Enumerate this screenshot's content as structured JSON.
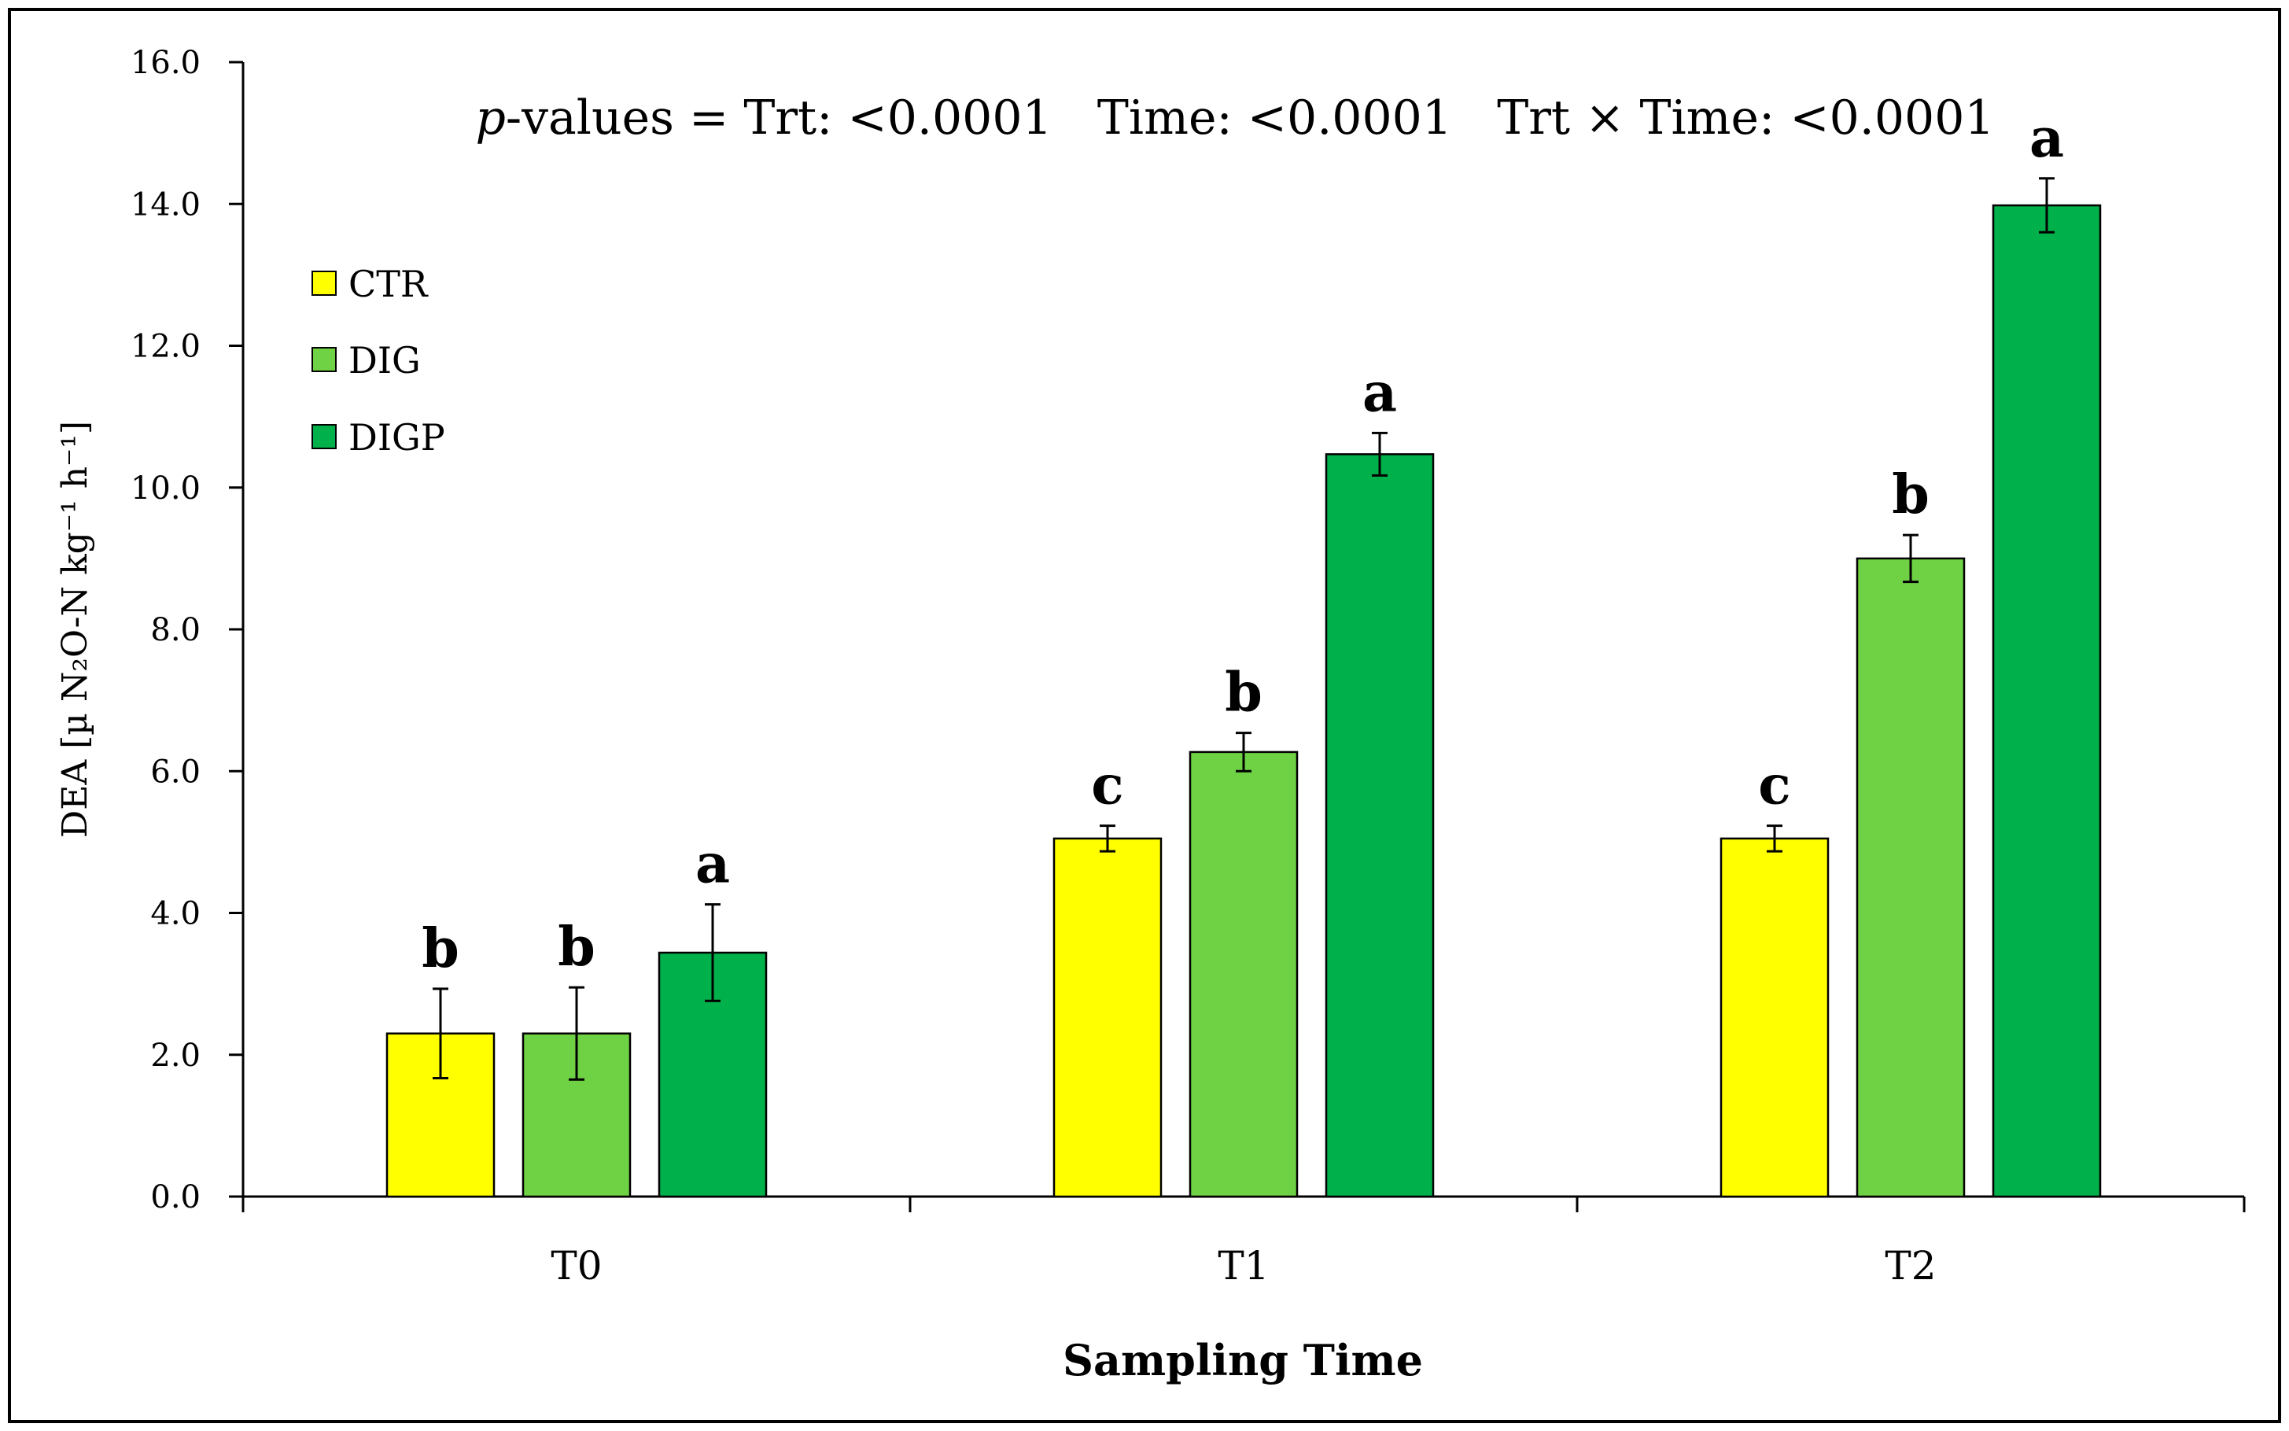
{
  "chart_data": {
    "type": "bar",
    "categories": [
      "T0",
      "T1",
      "T2"
    ],
    "series": [
      {
        "name": "CTR",
        "color": "#ffff00",
        "values": [
          2.3,
          5.05,
          5.05
        ],
        "errors": [
          0.63,
          0.18,
          0.18
        ],
        "letters": [
          "b",
          "c",
          "c"
        ]
      },
      {
        "name": "DIG",
        "color": "#6ed244",
        "values": [
          2.3,
          6.27,
          9.0
        ],
        "errors": [
          0.65,
          0.27,
          0.33
        ],
        "letters": [
          "b",
          "b",
          "b"
        ]
      },
      {
        "name": "DIGP",
        "color": "#00b04a",
        "values": [
          3.44,
          10.47,
          13.98
        ],
        "errors": [
          0.68,
          0.3,
          0.38
        ],
        "letters": [
          "a",
          "a",
          "a"
        ]
      }
    ],
    "xlabel": "Sampling Time",
    "ylabel": "DEA [µ N₂O-N kg⁻¹ h⁻¹]",
    "ylim": [
      0,
      16
    ],
    "yticks": [
      "0.0",
      "2.0",
      "4.0",
      "6.0",
      "8.0",
      "10.0",
      "12.0",
      "14.0",
      "16.0"
    ],
    "grid": false,
    "legend_position": "top-left",
    "annotation": {
      "p_italic": "p",
      "rest": "-values = Trt: <0.0001   Time: <0.0001   Trt × Time: <0.0001"
    }
  }
}
